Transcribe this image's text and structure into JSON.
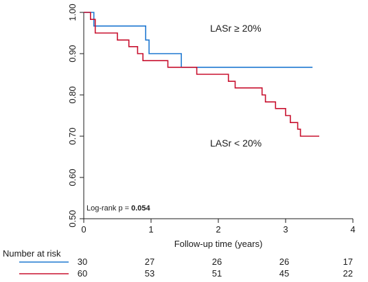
{
  "chart_data": {
    "type": "line",
    "subtype": "kaplan-meier-step",
    "xlabel": "Follow-up time (years)",
    "ylabel": "",
    "xlim": [
      0,
      4
    ],
    "ylim": [
      0.5,
      1.0
    ],
    "x_ticks": [
      0,
      1,
      2,
      3,
      4
    ],
    "x_tick_labels": [
      "0",
      "1",
      "2",
      "3",
      "4"
    ],
    "y_ticks": [
      0.5,
      0.6,
      0.7,
      0.8,
      0.9,
      1.0
    ],
    "y_tick_labels": [
      "0.50",
      "0.60",
      "0.70",
      "0.80",
      "0.90",
      "1.00"
    ],
    "grid": false,
    "legend": "none",
    "series": [
      {
        "name": "LASr ≥ 20%",
        "color": "#1f78d1",
        "x": [
          0,
          0.15,
          0.15,
          0.92,
          0.92,
          0.97,
          0.97,
          1.45,
          1.45,
          3.4
        ],
        "y": [
          1.0,
          1.0,
          0.967,
          0.967,
          0.933,
          0.933,
          0.9,
          0.9,
          0.867,
          0.867
        ]
      },
      {
        "name": "LASr < 20%",
        "color": "#c8102e",
        "x": [
          0,
          0.1,
          0.1,
          0.17,
          0.17,
          0.5,
          0.5,
          0.67,
          0.67,
          0.8,
          0.8,
          0.88,
          0.88,
          1.25,
          1.25,
          1.68,
          1.68,
          2.15,
          2.15,
          2.25,
          2.25,
          2.65,
          2.65,
          2.7,
          2.7,
          2.85,
          2.85,
          3.0,
          3.0,
          3.07,
          3.07,
          3.18,
          3.18,
          3.22,
          3.22,
          3.5
        ],
        "y": [
          1.0,
          1.0,
          0.983,
          0.983,
          0.95,
          0.95,
          0.933,
          0.933,
          0.917,
          0.917,
          0.9,
          0.9,
          0.883,
          0.883,
          0.867,
          0.867,
          0.85,
          0.85,
          0.833,
          0.833,
          0.817,
          0.817,
          0.8,
          0.8,
          0.783,
          0.783,
          0.767,
          0.767,
          0.75,
          0.75,
          0.733,
          0.733,
          0.717,
          0.717,
          0.7,
          0.7
        ]
      }
    ],
    "annotations": [
      {
        "text": "LASr ≥ 20%",
        "series": 0
      },
      {
        "text": "LASr < 20%",
        "series": 1
      },
      {
        "text_prefix": "Log-rank p = ",
        "text_value": "0.054"
      }
    ]
  },
  "risk_table": {
    "title": "Number at risk",
    "rows": [
      {
        "color": "#1f78d1",
        "values": [
          "30",
          "27",
          "26",
          "26",
          "17"
        ]
      },
      {
        "color": "#c8102e",
        "values": [
          "60",
          "53",
          "51",
          "45",
          "22"
        ]
      }
    ]
  }
}
